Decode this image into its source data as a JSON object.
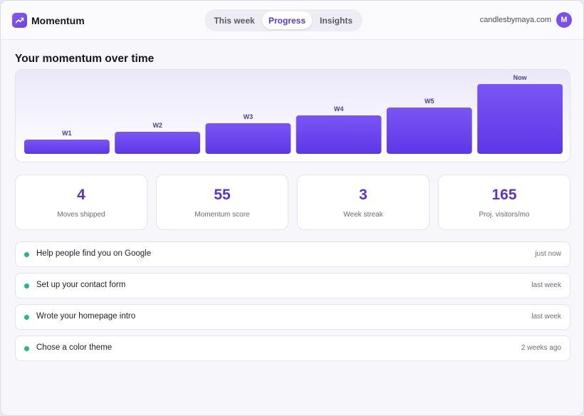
{
  "app": {
    "name": "Momentum",
    "logo_icon": "trend-up-icon"
  },
  "tabs": [
    {
      "label": "This week",
      "active": false
    },
    {
      "label": "Progress",
      "active": true
    },
    {
      "label": "Insights",
      "active": false
    }
  ],
  "account": {
    "email": "candlesbymaya.com",
    "avatar_initial": "M"
  },
  "section_title": "Your momentum over time",
  "chart_data": {
    "type": "bar",
    "categories": [
      "W1",
      "W2",
      "W3",
      "W4",
      "W5",
      "Now"
    ],
    "values": [
      20,
      31,
      43,
      54,
      65,
      98
    ],
    "ylim": [
      0,
      100
    ],
    "grid": false,
    "bar_color": "#6a44ef"
  },
  "stats": [
    {
      "value": "4",
      "label": "Moves shipped"
    },
    {
      "value": "55",
      "label": "Momentum score"
    },
    {
      "value": "3",
      "label": "Week streak"
    },
    {
      "value": "165",
      "label": "Proj. visitors/mo"
    }
  ],
  "activity": [
    {
      "text": "Help people find you on Google",
      "time": "just now"
    },
    {
      "text": "Set up your contact form",
      "time": "last week"
    },
    {
      "text": "Wrote your homepage intro",
      "time": "last week"
    },
    {
      "text": "Chose a color theme",
      "time": "2 weeks ago"
    }
  ],
  "colors": {
    "accent": "#5a33d6",
    "bar": "#6a44ef",
    "status_dot": "#1fb98c"
  }
}
